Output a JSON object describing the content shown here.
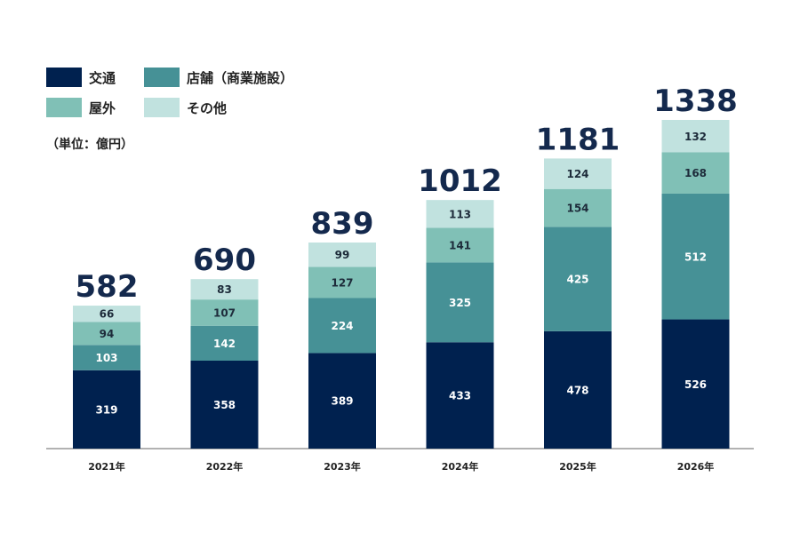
{
  "legend": {
    "items": [
      {
        "label": "交通",
        "color": "#00214f"
      },
      {
        "label": "店舗（商業施設）",
        "color": "#469196"
      },
      {
        "label": "屋外",
        "color": "#80c0b6"
      },
      {
        "label": "その他",
        "color": "#c1e2df"
      }
    ]
  },
  "unit_label": "（単位：億円）",
  "chart_data": {
    "type": "bar",
    "stacked": true,
    "categories": [
      "2021年",
      "2022年",
      "2023年",
      "2024年",
      "2025年",
      "2026年"
    ],
    "series": [
      {
        "name": "交通",
        "color": "#00214f",
        "values": [
          319,
          358,
          389,
          433,
          478,
          526
        ]
      },
      {
        "name": "店舗（商業施設）",
        "color": "#469196",
        "values": [
          103,
          142,
          224,
          325,
          425,
          512
        ]
      },
      {
        "name": "屋外",
        "color": "#80c0b6",
        "values": [
          94,
          107,
          127,
          141,
          154,
          168
        ]
      },
      {
        "name": "その他",
        "color": "#c1e2df",
        "values": [
          66,
          83,
          99,
          113,
          124,
          132
        ]
      }
    ],
    "totals": [
      582,
      690,
      839,
      1012,
      1181,
      1338
    ],
    "ylim": [
      0,
      1338
    ],
    "grid": false,
    "legend_position": "top-left"
  }
}
